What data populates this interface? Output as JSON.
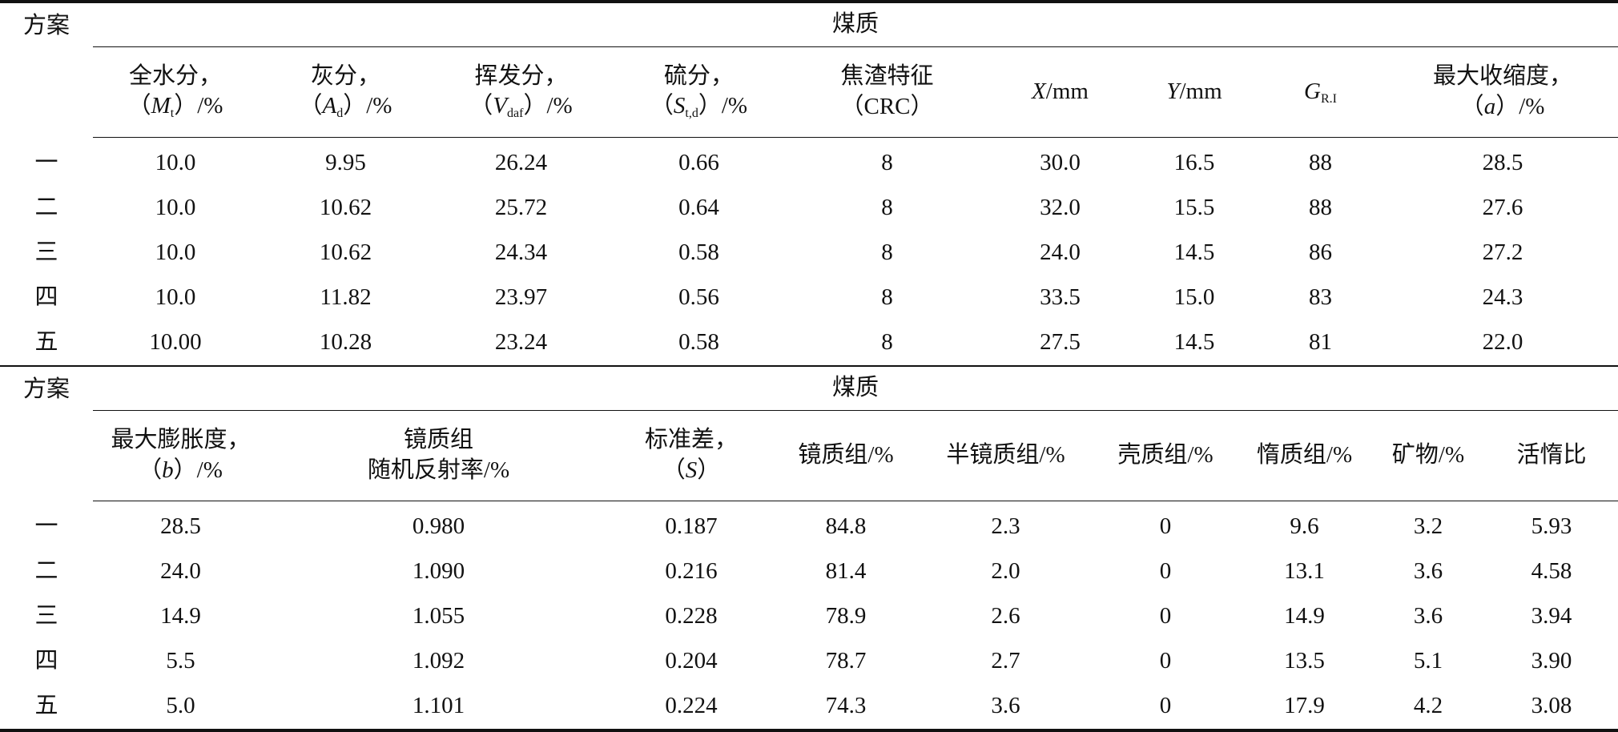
{
  "tables": [
    {
      "group": "煤质",
      "row_header": "方案",
      "columns": [
        [
          "全水分，",
          "（",
          "M",
          "t",
          "）/%"
        ],
        [
          "灰分，",
          "（",
          "A",
          "d",
          "）/%"
        ],
        [
          "挥发分，",
          "（",
          "V",
          "daf",
          "）/%"
        ],
        [
          "硫分，",
          "（",
          "S",
          "t,d",
          "）/%"
        ],
        [
          "焦渣特征",
          "（CRC）"
        ],
        [
          "X",
          "/mm"
        ],
        [
          "Y",
          "/mm"
        ],
        [
          "G",
          "R.I"
        ],
        [
          "最大收缩度，",
          "（",
          "a",
          "）/%"
        ]
      ],
      "rows": [
        [
          "一",
          "10.0",
          "9.95",
          "26.24",
          "0.66",
          "8",
          "30.0",
          "16.5",
          "88",
          "28.5"
        ],
        [
          "二",
          "10.0",
          "10.62",
          "25.72",
          "0.64",
          "8",
          "32.0",
          "15.5",
          "88",
          "27.6"
        ],
        [
          "三",
          "10.0",
          "10.62",
          "24.34",
          "0.58",
          "8",
          "24.0",
          "14.5",
          "86",
          "27.2"
        ],
        [
          "四",
          "10.0",
          "11.82",
          "23.97",
          "0.56",
          "8",
          "33.5",
          "15.0",
          "83",
          "24.3"
        ],
        [
          "五",
          "10.00",
          "10.28",
          "23.24",
          "0.58",
          "8",
          "27.5",
          "14.5",
          "81",
          "22.0"
        ]
      ]
    },
    {
      "group": "煤质",
      "row_header": "方案",
      "columns": [
        [
          "最大膨胀度，",
          "（",
          "b",
          "）/%"
        ],
        [
          "镜质组",
          "随机反射率/%"
        ],
        [
          "标准差，",
          "（",
          "S",
          "）"
        ],
        [
          "镜质组/%"
        ],
        [
          "半镜质组/%"
        ],
        [
          "壳质组/%"
        ],
        [
          "惰质组/%"
        ],
        [
          "矿物/%"
        ],
        [
          "活惰比"
        ]
      ],
      "rows": [
        [
          "一",
          "28.5",
          "0.980",
          "0.187",
          "84.8",
          "2.3",
          "0",
          "9.6",
          "3.2",
          "5.93"
        ],
        [
          "二",
          "24.0",
          "1.090",
          "0.216",
          "81.4",
          "2.0",
          "0",
          "13.1",
          "3.6",
          "4.58"
        ],
        [
          "三",
          "14.9",
          "1.055",
          "0.228",
          "78.9",
          "2.6",
          "0",
          "14.9",
          "3.6",
          "3.94"
        ],
        [
          "四",
          "5.5",
          "1.092",
          "0.204",
          "78.7",
          "2.7",
          "0",
          "13.5",
          "5.1",
          "3.90"
        ],
        [
          "五",
          "5.0",
          "1.101",
          "0.224",
          "74.3",
          "3.6",
          "0",
          "17.9",
          "4.2",
          "3.08"
        ]
      ]
    }
  ]
}
